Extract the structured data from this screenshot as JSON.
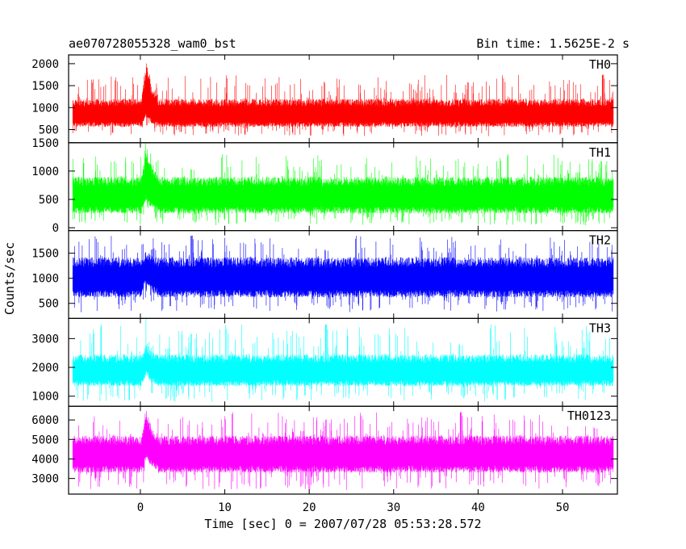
{
  "chart_data": {
    "type": "line",
    "title": "ae070728055328_wam0_bst",
    "subtitle": "Bin time: 1.5625E-2 s",
    "xlabel": "Time [sec] 0 = 2007/07/28 05:53:28.572",
    "ylabel": "Counts/sec",
    "xlim": [
      -8.5,
      56.5
    ],
    "x_range": [
      -8,
      56
    ],
    "xticks": [
      0,
      10,
      20,
      30,
      40,
      50
    ],
    "burst_time": 0.7,
    "panels": [
      {
        "name": "TH0",
        "color": "#ff0000",
        "ylim": [
          200,
          2200
        ],
        "yticks": [
          500,
          1000,
          1500,
          2000
        ],
        "mean": 850,
        "band_low": 560,
        "band_high": 1200,
        "spike_min": 350,
        "spike_max": 1750,
        "burst_peak": 2200
      },
      {
        "name": "TH1",
        "color": "#00ff00",
        "ylim": [
          -50,
          1500
        ],
        "yticks": [
          0,
          500,
          1000,
          1500
        ],
        "mean": 560,
        "band_low": 250,
        "band_high": 900,
        "spike_min": 40,
        "spike_max": 1300,
        "burst_peak": 1500
      },
      {
        "name": "TH2",
        "color": "#0000ff",
        "ylim": [
          200,
          1950
        ],
        "yticks": [
          500,
          1000,
          1500
        ],
        "mean": 1000,
        "band_low": 620,
        "band_high": 1420,
        "spike_min": 320,
        "spike_max": 1850,
        "burst_peak": 1550
      },
      {
        "name": "TH3",
        "color": "#00ffff",
        "ylim": [
          650,
          3700
        ],
        "yticks": [
          1000,
          2000,
          3000
        ],
        "mean": 1850,
        "band_low": 1350,
        "band_high": 2450,
        "spike_min": 800,
        "spike_max": 3500,
        "burst_peak": 2900
      },
      {
        "name": "TH0123",
        "color": "#ff00ff",
        "ylim": [
          2200,
          6700
        ],
        "yticks": [
          3000,
          4000,
          5000,
          6000
        ],
        "mean": 4200,
        "band_low": 3300,
        "band_high": 5200,
        "spike_min": 2400,
        "spike_max": 6400,
        "burst_peak": 6700
      }
    ],
    "grid": false,
    "legend": "none"
  }
}
